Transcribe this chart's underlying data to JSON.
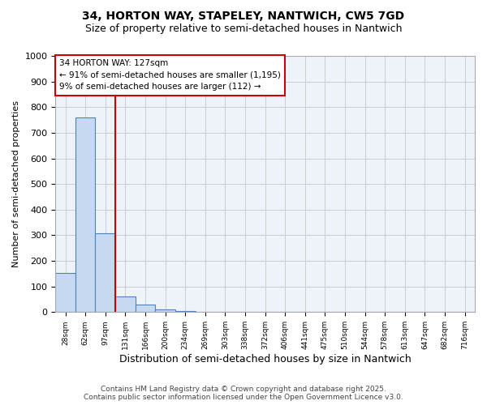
{
  "title_line1": "34, HORTON WAY, STAPELEY, NANTWICH, CW5 7GD",
  "title_line2": "Size of property relative to semi-detached houses in Nantwich",
  "xlabel": "Distribution of semi-detached houses by size in Nantwich",
  "ylabel": "Number of semi-detached properties",
  "bar_color": "#c6d9f1",
  "bar_edgecolor": "#4f81bd",
  "grid_color": "#cccccc",
  "bg_color": "#eef2f9",
  "annotation_box_color": "#cc0000",
  "vline_color": "#cc0000",
  "bins": [
    "28sqm",
    "62sqm",
    "97sqm",
    "131sqm",
    "166sqm",
    "200sqm",
    "234sqm",
    "269sqm",
    "303sqm",
    "338sqm",
    "372sqm",
    "406sqm",
    "441sqm",
    "475sqm",
    "510sqm",
    "544sqm",
    "578sqm",
    "613sqm",
    "647sqm",
    "682sqm",
    "716sqm"
  ],
  "values": [
    152,
    760,
    307,
    60,
    30,
    10,
    5,
    0,
    0,
    0,
    0,
    0,
    0,
    0,
    0,
    0,
    0,
    0,
    0,
    0,
    0
  ],
  "ylim": [
    0,
    1000
  ],
  "yticks": [
    0,
    100,
    200,
    300,
    400,
    500,
    600,
    700,
    800,
    900,
    1000
  ],
  "vline_x": 2.5,
  "annotation_title": "34 HORTON WAY: 127sqm",
  "annotation_line2": "← 91% of semi-detached houses are smaller (1,195)",
  "annotation_line3": "9% of semi-detached houses are larger (112) →",
  "footer_line1": "Contains HM Land Registry data © Crown copyright and database right 2025.",
  "footer_line2": "Contains public sector information licensed under the Open Government Licence v3.0."
}
